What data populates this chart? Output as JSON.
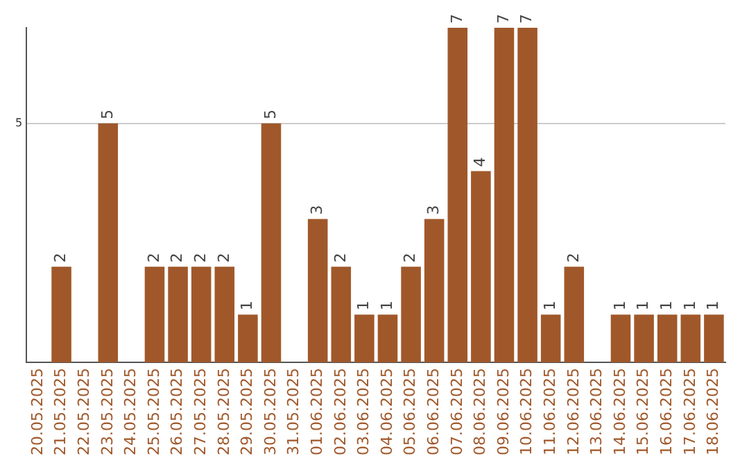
{
  "chart_data": {
    "type": "bar",
    "categories": [
      "20.05.2025",
      "21.05.2025",
      "22.05.2025",
      "23.05.2025",
      "24.05.2025",
      "25.05.2025",
      "26.05.2025",
      "27.05.2025",
      "28.05.2025",
      "29.05.2025",
      "30.05.2025",
      "31.05.2025",
      "01.06.2025",
      "02.06.2025",
      "03.06.2025",
      "04.06.2025",
      "05.06.2025",
      "06.06.2025",
      "07.06.2025",
      "08.06.2025",
      "09.06.2025",
      "10.06.2025",
      "11.06.2025",
      "12.06.2025",
      "13.06.2025",
      "14.06.2025",
      "15.06.2025",
      "16.06.2025",
      "17.06.2025",
      "18.06.2025"
    ],
    "values": [
      null,
      2,
      null,
      5,
      null,
      2,
      2,
      2,
      2,
      1,
      5,
      null,
      3,
      2,
      1,
      1,
      2,
      3,
      7,
      4,
      7,
      7,
      1,
      2,
      null,
      1,
      1,
      1,
      1,
      1
    ],
    "color": "#a0582a",
    "ylim": [
      0,
      7
    ],
    "yticks": [
      5
    ],
    "grid": "y",
    "data_labels": true,
    "legend": false
  }
}
